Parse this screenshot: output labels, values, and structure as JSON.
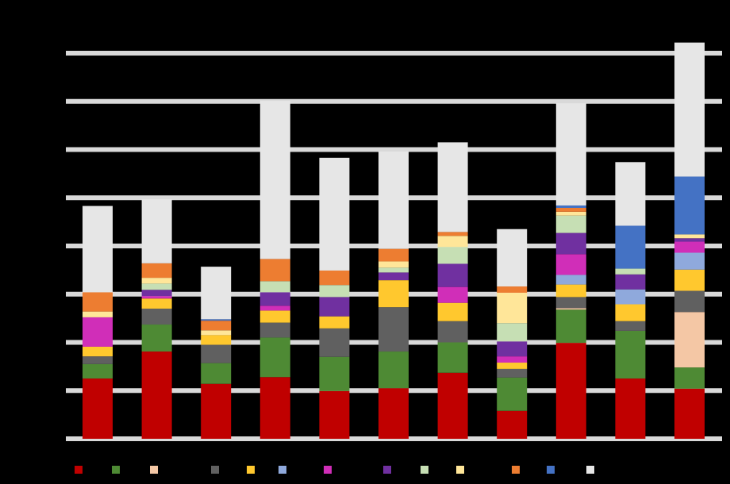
{
  "chart_data": {
    "type": "bar",
    "stacked": true,
    "background": "#000000",
    "grid": true,
    "grid_color": "#d9d9d9",
    "categories": [
      null,
      null,
      null,
      null,
      null,
      null,
      null,
      null,
      null,
      null,
      null
    ],
    "ylim": [
      0,
      8.5
    ],
    "yticks": [
      0,
      1,
      2,
      3,
      4,
      5,
      6,
      7,
      8
    ],
    "series": [
      {
        "color": "#c00000",
        "values": [
          1.25,
          1.81,
          1.14,
          1.28,
          0.99,
          1.05,
          1.37,
          0.58,
          1.99,
          1.25,
          1.04
        ]
      },
      {
        "color": "#4e8a34",
        "values": [
          0.3,
          0.56,
          0.43,
          0.82,
          0.71,
          0.76,
          0.63,
          0.69,
          0.69,
          0.99,
          0.44
        ]
      },
      {
        "color": "#f4c7a5",
        "values": [
          0,
          0,
          0,
          0,
          0,
          0,
          0,
          0,
          0.03,
          0,
          1.15
        ]
      },
      {
        "color": "#606060",
        "values": [
          0.16,
          0.33,
          0.38,
          0.31,
          0.59,
          0.92,
          0.44,
          0.18,
          0.23,
          0.2,
          0.44
        ]
      },
      {
        "color": "#ffc82e",
        "values": [
          0.2,
          0.21,
          0.2,
          0.25,
          0.25,
          0.56,
          0.38,
          0.13,
          0.26,
          0.35,
          0.44
        ]
      },
      {
        "color": "#8fa9dc",
        "values": [
          0,
          0,
          0,
          0,
          0,
          0,
          0,
          0,
          0.2,
          0.31,
          0.35
        ]
      },
      {
        "color": "#d02eb8",
        "values": [
          0.61,
          0.05,
          0,
          0.1,
          0,
          0,
          0.33,
          0.13,
          0.43,
          0,
          0.23
        ]
      },
      {
        "color": "#7030a0",
        "values": [
          0,
          0.13,
          0,
          0.28,
          0.4,
          0.16,
          0.48,
          0.31,
          0.44,
          0.31,
          0.07
        ]
      },
      {
        "color": "#c6dfb4",
        "values": [
          0,
          0.13,
          0,
          0.23,
          0.25,
          0.1,
          0.35,
          0.38,
          0.36,
          0.12,
          0
        ]
      },
      {
        "color": "#ffe699",
        "values": [
          0.12,
          0.12,
          0.1,
          0,
          0,
          0.13,
          0.23,
          0.63,
          0.08,
          0,
          0.08
        ]
      },
      {
        "color": "#ed7d31",
        "values": [
          0.4,
          0.3,
          0.2,
          0.46,
          0.3,
          0.26,
          0.08,
          0.13,
          0.08,
          0,
          0
        ]
      },
      {
        "color": "#4472c4",
        "values": [
          0,
          0,
          0.03,
          0,
          0,
          0,
          0,
          0,
          0.05,
          0.89,
          1.2
        ]
      },
      {
        "color": "#e6e6e6",
        "values": [
          1.79,
          1.33,
          1.09,
          3.28,
          2.34,
          2.02,
          1.86,
          1.19,
          2.12,
          1.32,
          2.78
        ]
      }
    ]
  }
}
